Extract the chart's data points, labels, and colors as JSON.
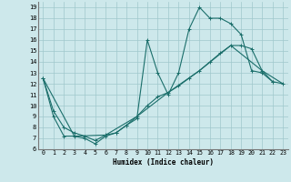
{
  "xlabel": "Humidex (Indice chaleur)",
  "bg_color": "#cde8eb",
  "grid_color": "#a0c8cc",
  "line_color": "#1a6e6a",
  "xlim": [
    -0.5,
    23.5
  ],
  "ylim": [
    6,
    19.5
  ],
  "xticks": [
    0,
    1,
    2,
    3,
    4,
    5,
    6,
    7,
    8,
    9,
    10,
    11,
    12,
    13,
    14,
    15,
    16,
    17,
    18,
    19,
    20,
    21,
    22,
    23
  ],
  "yticks": [
    6,
    7,
    8,
    9,
    10,
    11,
    12,
    13,
    14,
    15,
    16,
    17,
    18,
    19
  ],
  "line1_x": [
    0,
    1,
    2,
    3,
    4,
    5,
    6,
    7,
    8,
    9,
    10,
    11,
    12,
    13,
    14,
    15,
    16,
    17,
    18,
    19,
    20,
    21,
    22
  ],
  "line1_y": [
    12.5,
    9.0,
    7.2,
    7.2,
    7.0,
    6.5,
    7.2,
    7.5,
    8.2,
    8.8,
    16.0,
    13.0,
    11.0,
    13.0,
    17.0,
    19.0,
    18.0,
    18.0,
    17.5,
    16.5,
    13.2,
    13.0,
    12.2
  ],
  "line2_x": [
    0,
    1,
    2,
    3,
    4,
    5,
    6,
    7,
    8,
    9,
    10,
    11,
    12,
    13,
    14,
    15,
    16,
    17,
    18,
    19,
    20,
    21,
    22,
    23
  ],
  "line2_y": [
    12.5,
    9.5,
    8.0,
    7.5,
    7.2,
    6.8,
    7.3,
    7.5,
    8.2,
    9.0,
    10.0,
    10.8,
    11.2,
    11.8,
    12.5,
    13.2,
    14.0,
    14.8,
    15.5,
    15.5,
    15.2,
    13.2,
    12.2,
    12.0
  ],
  "line3_x": [
    0,
    3,
    6,
    9,
    12,
    15,
    18,
    21,
    23
  ],
  "line3_y": [
    12.5,
    7.2,
    7.3,
    9.0,
    11.2,
    13.2,
    15.5,
    13.2,
    12.0
  ]
}
